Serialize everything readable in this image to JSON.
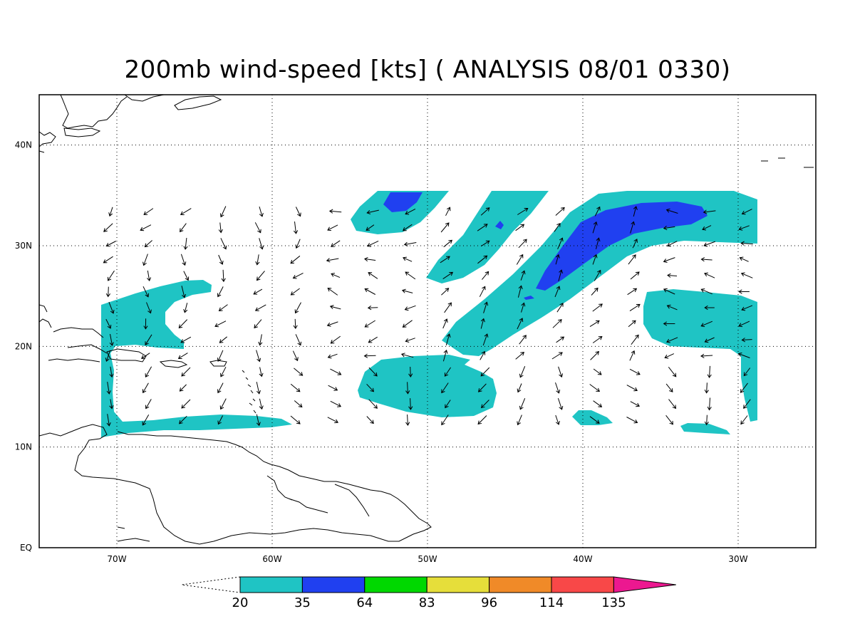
{
  "title": "200mb wind-speed [kts] ( ANALYSIS 08/01 0330)",
  "map": {
    "lon_range": [
      -75,
      -25
    ],
    "lat_range": [
      0,
      45
    ],
    "lon_ticks": [
      {
        "lon": -70,
        "label": "70W"
      },
      {
        "lon": -60,
        "label": "60W"
      },
      {
        "lon": -50,
        "label": "50W"
      },
      {
        "lon": -40,
        "label": "40W"
      },
      {
        "lon": -30,
        "label": "30W"
      }
    ],
    "lat_ticks": [
      {
        "lat": 0,
        "label": "EQ"
      },
      {
        "lat": 10,
        "label": "10N"
      },
      {
        "lat": 20,
        "label": "20N"
      },
      {
        "lat": 30,
        "label": "30N"
      },
      {
        "lat": 40,
        "label": "40N"
      }
    ],
    "grid": true,
    "colors": {
      "20-35": "#1fc4c4",
      "35-64": "#2040f0"
    }
  },
  "colorbar": {
    "levels": [
      "20",
      "35",
      "64",
      "83",
      "96",
      "114",
      "135"
    ],
    "colors": [
      "#1fc4c4",
      "#2040f0",
      "#00d800",
      "#e6de3a",
      "#f08a28",
      "#f84848",
      "#ec1890"
    ]
  }
}
